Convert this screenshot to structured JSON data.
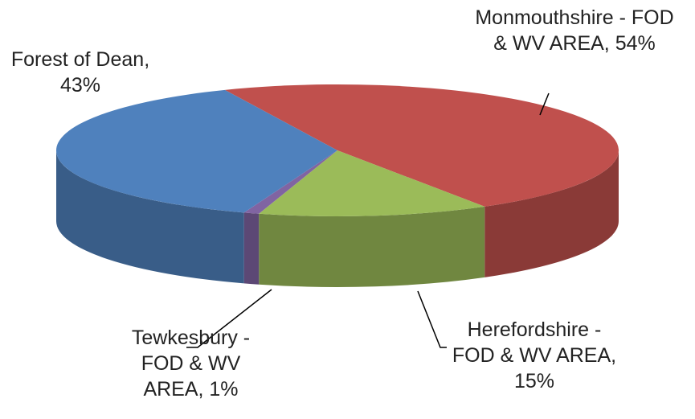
{
  "chart_data": {
    "type": "pie3d",
    "values": [
      54,
      15,
      1,
      43
    ],
    "value_labels": [
      "Monmouthshire - FOD & WV AREA, 54%",
      "Herefordshire - FOD & WV AREA, 15%",
      "Tewkesbury - FOD & WV AREA, 1%",
      "Forest of Dean, 43%"
    ],
    "colors": [
      "#c0504d",
      "#9bbb59",
      "#8064a2",
      "#4f81bd"
    ]
  }
}
